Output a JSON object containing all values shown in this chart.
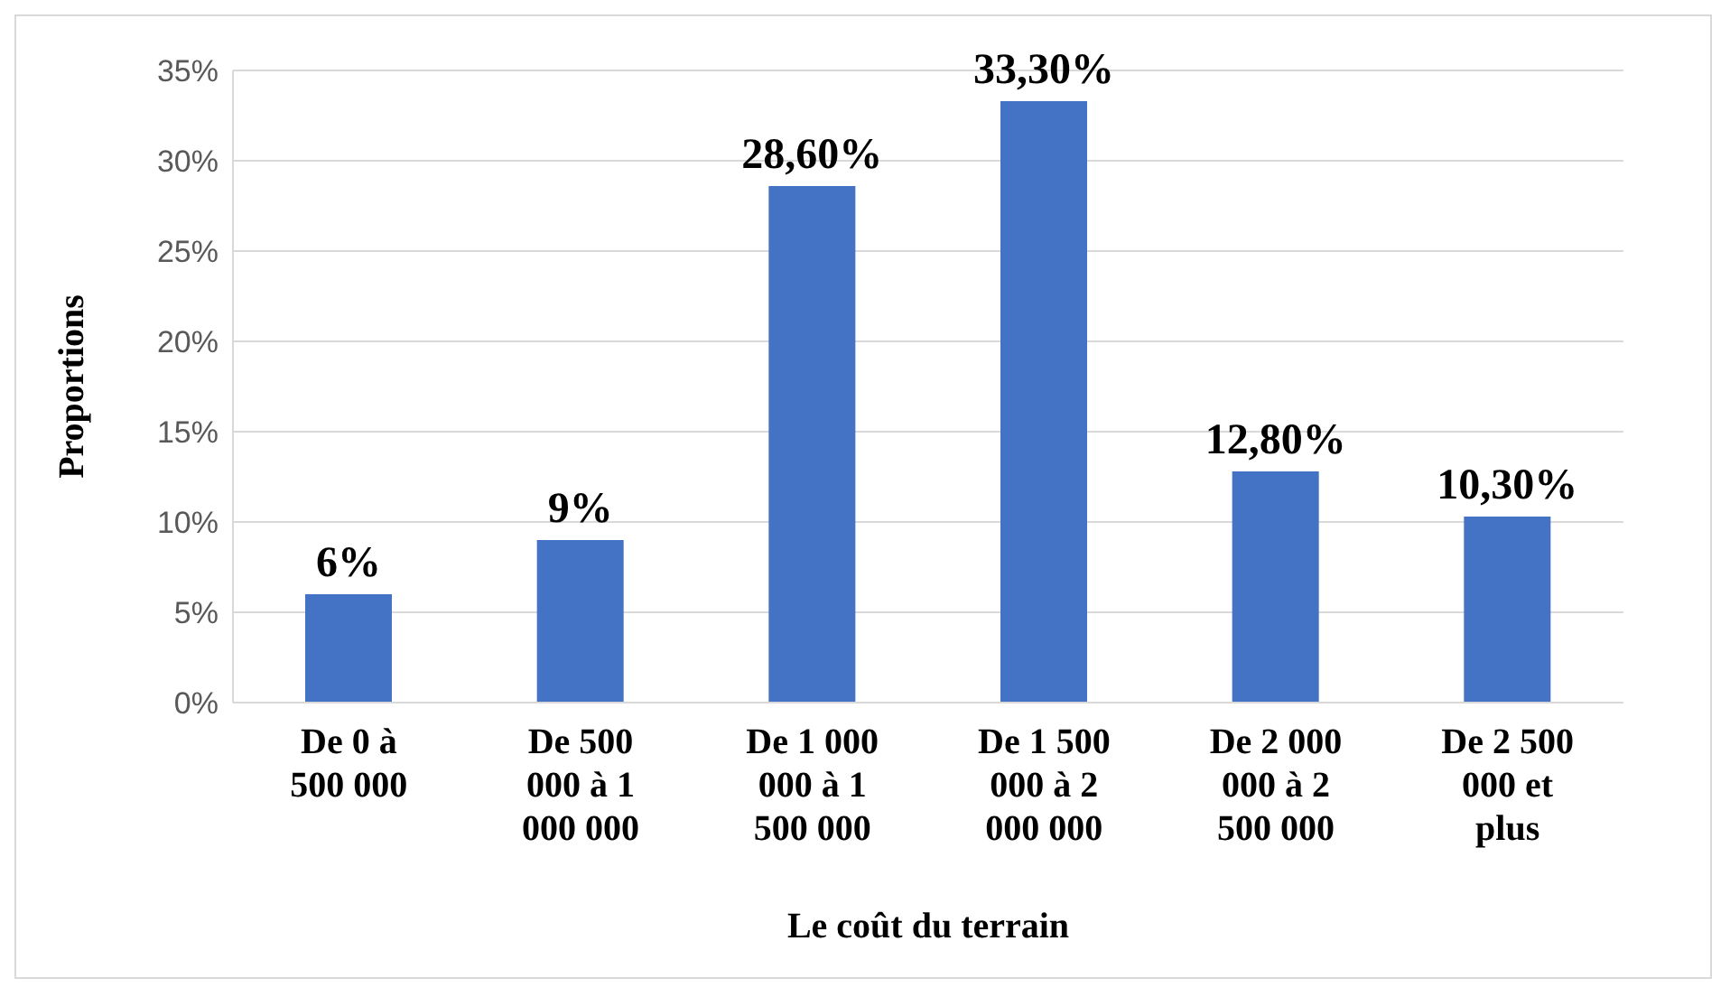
{
  "chart_data": {
    "type": "bar",
    "xlabel": "Le coût du terrain",
    "ylabel": "Proportions",
    "categories": [
      "De 0 à 500 000",
      "De 500 000 à 1 000 000",
      "De 1 000 000 à 1 500 000",
      "De 1 500 000 à 2 000 000",
      "De 2 000 000 à 2 500 000",
      "De 2 500 000 et plus"
    ],
    "values": [
      6,
      9,
      28.6,
      33.3,
      12.8,
      10.3
    ],
    "value_labels": [
      "6%",
      "9%",
      "28,60%",
      "33,30%",
      "12,80%",
      "10,30%"
    ],
    "color": "#4472c4",
    "ylim": [
      0,
      35
    ],
    "yticks": [
      {
        "value": 0,
        "label": "0%"
      },
      {
        "value": 5,
        "label": "5%"
      },
      {
        "value": 10,
        "label": "10%"
      },
      {
        "value": 15,
        "label": "15%"
      },
      {
        "value": 20,
        "label": "20%"
      },
      {
        "value": 25,
        "label": "25%"
      },
      {
        "value": 30,
        "label": "30%"
      },
      {
        "value": 35,
        "label": "35%"
      }
    ],
    "grid": "y"
  }
}
